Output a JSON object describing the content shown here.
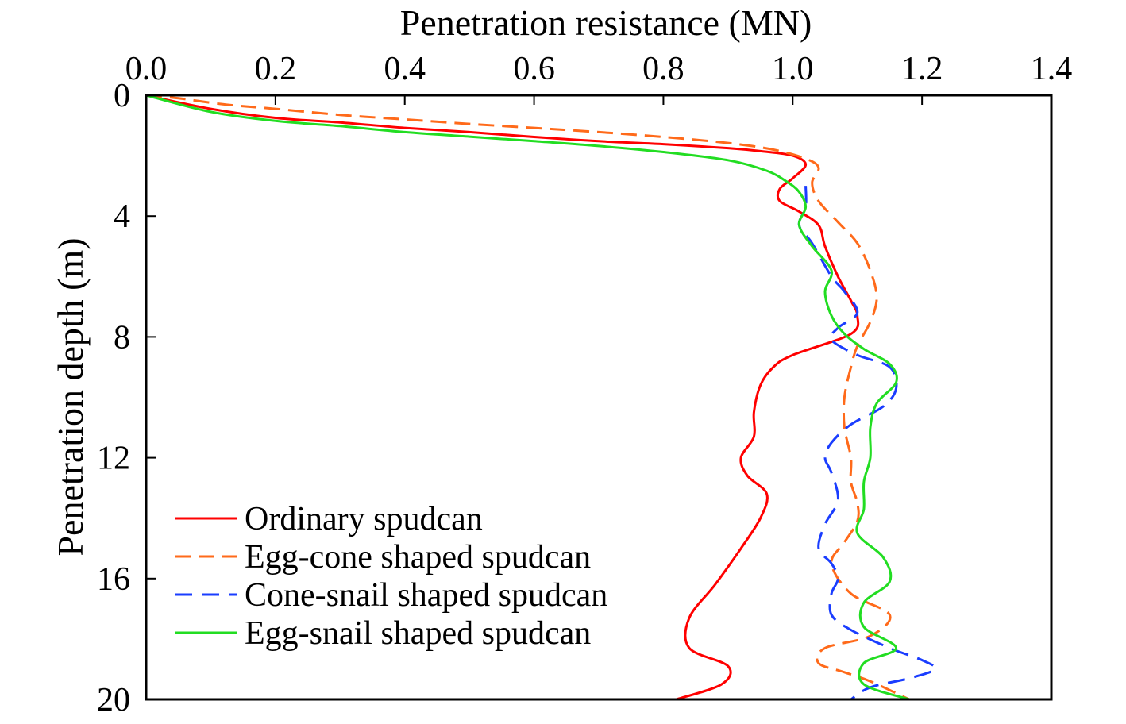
{
  "chart_data": {
    "type": "line",
    "title": "",
    "xlabel": "Penetration resistance (MN)",
    "ylabel": "Penetration depth (m)",
    "xlim": [
      0,
      1.4
    ],
    "ylim": [
      0,
      20
    ],
    "x_axis_position": "top",
    "y_axis_inverted": true,
    "xticks": [
      "0.0",
      "0.2",
      "0.4",
      "0.6",
      "0.8",
      "1.0",
      "1.2",
      "1.4"
    ],
    "yticks": [
      "0",
      "4",
      "8",
      "12",
      "16",
      "20"
    ],
    "grid": false,
    "legend_position": "bottom-left",
    "series": [
      {
        "name": "Ordinary spudcan",
        "color": "#ff0000",
        "dash": "solid",
        "points": [
          [
            0,
            0
          ],
          [
            0.1,
            0.45
          ],
          [
            0.2,
            0.75
          ],
          [
            0.3,
            0.9
          ],
          [
            0.4,
            1.08
          ],
          [
            0.5,
            1.22
          ],
          [
            0.6,
            1.38
          ],
          [
            0.7,
            1.52
          ],
          [
            0.8,
            1.62
          ],
          [
            0.9,
            1.75
          ],
          [
            0.95,
            1.85
          ],
          [
            1.0,
            2.0
          ],
          [
            1.02,
            2.3
          ],
          [
            1.0,
            2.75
          ],
          [
            0.98,
            3.1
          ],
          [
            0.98,
            3.5
          ],
          [
            1.01,
            3.85
          ],
          [
            1.04,
            4.3
          ],
          [
            1.05,
            5.0
          ],
          [
            1.07,
            6.0
          ],
          [
            1.09,
            6.8
          ],
          [
            1.1,
            7.3
          ],
          [
            1.09,
            7.9
          ],
          [
            1.0,
            8.6
          ],
          [
            0.97,
            9.0
          ],
          [
            0.95,
            9.6
          ],
          [
            0.94,
            10.5
          ],
          [
            0.94,
            11.3
          ],
          [
            0.92,
            12.0
          ],
          [
            0.93,
            12.6
          ],
          [
            0.96,
            13.2
          ],
          [
            0.95,
            14.0
          ],
          [
            0.92,
            15.0
          ],
          [
            0.88,
            16.2
          ],
          [
            0.84,
            17.3
          ],
          [
            0.84,
            18.3
          ],
          [
            0.9,
            18.9
          ],
          [
            0.89,
            19.5
          ],
          [
            0.82,
            20.0
          ]
        ]
      },
      {
        "name": "Egg-cone shaped spudcan",
        "color": "#ff6a1a",
        "dash": "dashed",
        "points": [
          [
            0,
            0
          ],
          [
            0.05,
            0.1
          ],
          [
            0.12,
            0.3
          ],
          [
            0.2,
            0.45
          ],
          [
            0.3,
            0.65
          ],
          [
            0.4,
            0.8
          ],
          [
            0.5,
            0.95
          ],
          [
            0.6,
            1.08
          ],
          [
            0.7,
            1.22
          ],
          [
            0.8,
            1.38
          ],
          [
            0.9,
            1.58
          ],
          [
            0.97,
            1.8
          ],
          [
            1.02,
            2.1
          ],
          [
            1.04,
            2.4
          ],
          [
            1.03,
            2.9
          ],
          [
            1.04,
            3.5
          ],
          [
            1.07,
            4.2
          ],
          [
            1.1,
            4.9
          ],
          [
            1.12,
            5.8
          ],
          [
            1.13,
            6.7
          ],
          [
            1.12,
            7.5
          ],
          [
            1.1,
            8.3
          ],
          [
            1.09,
            9.0
          ],
          [
            1.08,
            10.0
          ],
          [
            1.08,
            11.0
          ],
          [
            1.09,
            12.0
          ],
          [
            1.09,
            12.8
          ],
          [
            1.1,
            13.5
          ],
          [
            1.1,
            14.1
          ],
          [
            1.08,
            14.8
          ],
          [
            1.06,
            15.5
          ],
          [
            1.09,
            16.5
          ],
          [
            1.15,
            17.2
          ],
          [
            1.12,
            17.9
          ],
          [
            1.05,
            18.3
          ],
          [
            1.04,
            18.8
          ],
          [
            1.08,
            19.1
          ],
          [
            1.12,
            19.4
          ],
          [
            1.18,
            20.0
          ]
        ]
      },
      {
        "name": "Cone-snail shaped spudcan",
        "color": "#1a3dff",
        "dash": "dashed",
        "points": [
          [
            1.02,
            3.0
          ],
          [
            1.02,
            3.7
          ],
          [
            1.01,
            4.3
          ],
          [
            1.03,
            4.9
          ],
          [
            1.06,
            6.0
          ],
          [
            1.08,
            6.5
          ],
          [
            1.1,
            7.2
          ],
          [
            1.07,
            7.7
          ],
          [
            1.06,
            8.1
          ],
          [
            1.1,
            8.6
          ],
          [
            1.15,
            9.0
          ],
          [
            1.16,
            9.7
          ],
          [
            1.14,
            10.3
          ],
          [
            1.09,
            10.9
          ],
          [
            1.06,
            11.5
          ],
          [
            1.05,
            12.0
          ],
          [
            1.06,
            12.5
          ],
          [
            1.07,
            13.4
          ],
          [
            1.05,
            14.2
          ],
          [
            1.04,
            15.0
          ],
          [
            1.06,
            15.5
          ],
          [
            1.07,
            16.0
          ],
          [
            1.06,
            16.5
          ],
          [
            1.06,
            17.2
          ],
          [
            1.09,
            17.7
          ],
          [
            1.15,
            18.3
          ],
          [
            1.2,
            18.7
          ],
          [
            1.22,
            19.0
          ],
          [
            1.18,
            19.3
          ],
          [
            1.12,
            19.6
          ],
          [
            1.09,
            20.0
          ]
        ]
      },
      {
        "name": "Egg-snail shaped spudcan",
        "color": "#22dd22",
        "dash": "solid",
        "points": [
          [
            0,
            0
          ],
          [
            0.1,
            0.55
          ],
          [
            0.2,
            0.85
          ],
          [
            0.3,
            1.02
          ],
          [
            0.4,
            1.22
          ],
          [
            0.5,
            1.37
          ],
          [
            0.6,
            1.52
          ],
          [
            0.7,
            1.68
          ],
          [
            0.8,
            1.88
          ],
          [
            0.9,
            2.15
          ],
          [
            0.96,
            2.5
          ],
          [
            0.99,
            2.85
          ],
          [
            1.01,
            3.2
          ],
          [
            1.02,
            3.7
          ],
          [
            1.01,
            4.3
          ],
          [
            1.03,
            5.0
          ],
          [
            1.06,
            5.8
          ],
          [
            1.05,
            6.5
          ],
          [
            1.06,
            7.3
          ],
          [
            1.08,
            7.9
          ],
          [
            1.11,
            8.4
          ],
          [
            1.15,
            8.9
          ],
          [
            1.16,
            9.5
          ],
          [
            1.13,
            10.2
          ],
          [
            1.12,
            11.0
          ],
          [
            1.12,
            12.0
          ],
          [
            1.11,
            12.8
          ],
          [
            1.11,
            13.7
          ],
          [
            1.1,
            14.5
          ],
          [
            1.14,
            15.3
          ],
          [
            1.15,
            16.1
          ],
          [
            1.11,
            16.8
          ],
          [
            1.11,
            17.6
          ],
          [
            1.16,
            18.3
          ],
          [
            1.11,
            18.8
          ],
          [
            1.11,
            19.5
          ],
          [
            1.18,
            20.0
          ]
        ]
      }
    ]
  }
}
